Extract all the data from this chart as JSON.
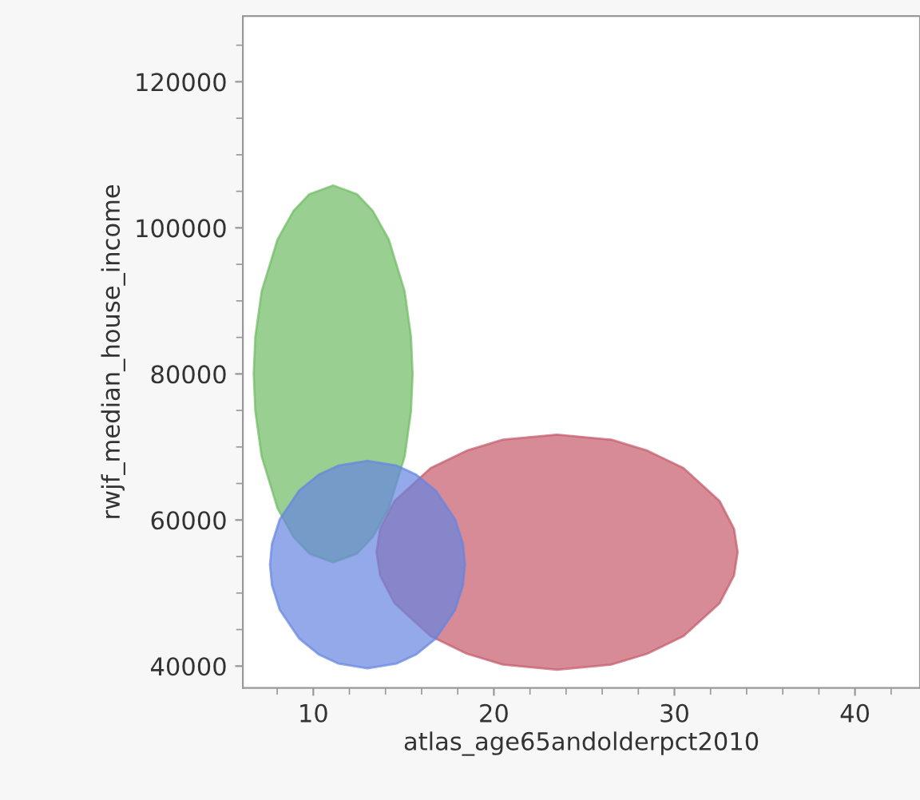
{
  "chart_data": {
    "type": "line",
    "xlabel": "atlas_age65andolderpct2010",
    "ylabel": "rwjf_median_house_income",
    "xlim": [
      6.1,
      43.6
    ],
    "xticks": [
      10,
      20,
      30,
      40
    ],
    "ylim": [
      37000,
      129000
    ],
    "yticks": [
      40000,
      60000,
      80000,
      100000,
      120000
    ],
    "grid": false,
    "legend": false,
    "series": [
      {
        "color": "#6fba64",
        "x": [
          6.7,
          6.79,
          7.14,
          8.02,
          8.9,
          9.78,
          11.1,
          12.42,
          13.3,
          14.18,
          15.06,
          15.41,
          15.5
        ],
        "values": [
          null,
          null,
          null,
          null,
          null,
          null,
          null,
          null,
          null,
          null,
          null,
          null,
          null
        ],
        "upper": [
          80000,
          85100,
          91300,
          98400,
          102300,
          104600,
          105800,
          104600,
          102300,
          98400,
          91300,
          85100,
          80000
        ],
        "lower": [
          80000,
          74900,
          68700,
          61600,
          57700,
          55400,
          54200,
          55400,
          57700,
          61600,
          68700,
          74900,
          80000
        ]
      },
      {
        "color": "#c55a6a",
        "x": [
          13.5,
          13.7,
          14.5,
          16.5,
          18.5,
          20.5,
          23.5,
          26.5,
          28.5,
          30.5,
          32.5,
          33.3,
          33.5
        ],
        "values": [
          null,
          null,
          null,
          null,
          null,
          null,
          null,
          null,
          null,
          null,
          null,
          null,
          null
        ],
        "upper": [
          55600,
          58800,
          62600,
          67100,
          69500,
          71000,
          71700,
          71000,
          69500,
          67100,
          62600,
          58800,
          55600
        ],
        "lower": [
          55600,
          52400,
          48600,
          44100,
          41700,
          40200,
          39500,
          40200,
          41700,
          44100,
          48600,
          52400,
          55600
        ]
      },
      {
        "color": "#6585e0",
        "x": [
          7.6,
          7.71,
          8.14,
          9.22,
          10.3,
          11.38,
          13.0,
          14.62,
          15.7,
          16.78,
          17.86,
          18.29,
          18.4
        ],
        "values": [
          null,
          null,
          null,
          null,
          null,
          null,
          null,
          null,
          null,
          null,
          null,
          null,
          null
        ],
        "upper": [
          53900,
          56730,
          60090,
          64040,
          66200,
          67450,
          68100,
          67450,
          66200,
          64040,
          60090,
          56730,
          53900
        ],
        "lower": [
          53900,
          51070,
          47710,
          43760,
          41600,
          40350,
          39700,
          40350,
          41600,
          43760,
          47710,
          51070,
          53900
        ]
      }
    ]
  }
}
